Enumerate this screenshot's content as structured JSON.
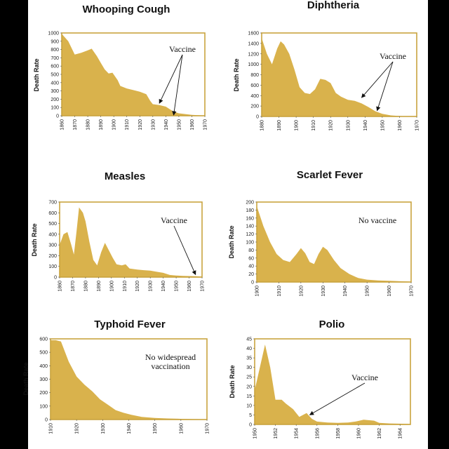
{
  "colors": {
    "fill": "#D9B24C",
    "frame": "#C9A43F",
    "text": "#111111"
  },
  "chart_data": [
    {
      "type": "area",
      "title": "Whooping Cough",
      "ylabel": "Death Rate",
      "xlabel": "",
      "xlim": [
        1860,
        1970
      ],
      "ylim": [
        0,
        1000
      ],
      "xticks": [
        1860,
        1870,
        1880,
        1890,
        1900,
        1910,
        1920,
        1930,
        1940,
        1950,
        1960,
        1970
      ],
      "yticks": [
        0,
        100,
        200,
        300,
        400,
        500,
        600,
        700,
        800,
        900,
        1000
      ],
      "points": [
        [
          1860,
          990
        ],
        [
          1865,
          900
        ],
        [
          1870,
          740
        ],
        [
          1875,
          760
        ],
        [
          1880,
          790
        ],
        [
          1883,
          810
        ],
        [
          1887,
          720
        ],
        [
          1890,
          640
        ],
        [
          1893,
          560
        ],
        [
          1896,
          510
        ],
        [
          1899,
          520
        ],
        [
          1903,
          430
        ],
        [
          1905,
          360
        ],
        [
          1910,
          330
        ],
        [
          1915,
          310
        ],
        [
          1920,
          290
        ],
        [
          1925,
          260
        ],
        [
          1928,
          180
        ],
        [
          1930,
          140
        ],
        [
          1935,
          130
        ],
        [
          1940,
          110
        ],
        [
          1943,
          80
        ],
        [
          1946,
          50
        ],
        [
          1950,
          30
        ],
        [
          1955,
          20
        ],
        [
          1960,
          10
        ],
        [
          1965,
          6
        ],
        [
          1970,
          4
        ]
      ],
      "annotation": {
        "text": "Vaccine",
        "arrow_targets": [
          [
            1935,
            150
          ],
          [
            1946,
            8
          ]
        ]
      }
    },
    {
      "type": "area",
      "title": "Diphtheria",
      "ylabel": "Death Rate",
      "xlabel": "",
      "xlim": [
        1880,
        1970
      ],
      "ylim": [
        0,
        1600
      ],
      "xticks": [
        1880,
        1890,
        1900,
        1910,
        1920,
        1930,
        1940,
        1950,
        1960,
        1970
      ],
      "yticks": [
        0,
        200,
        400,
        600,
        800,
        1000,
        1200,
        1400,
        1600
      ],
      "points": [
        [
          1880,
          1500
        ],
        [
          1883,
          1200
        ],
        [
          1886,
          1000
        ],
        [
          1889,
          1300
        ],
        [
          1891,
          1440
        ],
        [
          1893,
          1380
        ],
        [
          1896,
          1200
        ],
        [
          1899,
          900
        ],
        [
          1902,
          560
        ],
        [
          1905,
          450
        ],
        [
          1908,
          430
        ],
        [
          1911,
          520
        ],
        [
          1914,
          720
        ],
        [
          1917,
          700
        ],
        [
          1920,
          640
        ],
        [
          1923,
          450
        ],
        [
          1926,
          380
        ],
        [
          1930,
          320
        ],
        [
          1934,
          300
        ],
        [
          1938,
          250
        ],
        [
          1942,
          180
        ],
        [
          1946,
          100
        ],
        [
          1950,
          50
        ],
        [
          1955,
          20
        ],
        [
          1960,
          8
        ],
        [
          1965,
          4
        ],
        [
          1970,
          2
        ]
      ],
      "annotation": {
        "text": "Vaccine",
        "arrow_targets": [
          [
            1938,
            360
          ],
          [
            1947,
            110
          ]
        ]
      }
    },
    {
      "type": "area",
      "title": "Measles",
      "ylabel": "Death Rate",
      "xlabel": "",
      "xlim": [
        1860,
        1970
      ],
      "ylim": [
        0,
        700
      ],
      "xticks": [
        1860,
        1870,
        1880,
        1890,
        1900,
        1910,
        1920,
        1930,
        1940,
        1950,
        1960,
        1970
      ],
      "yticks": [
        0,
        100,
        200,
        300,
        400,
        500,
        600,
        700
      ],
      "points": [
        [
          1860,
          300
        ],
        [
          1863,
          400
        ],
        [
          1866,
          420
        ],
        [
          1869,
          300
        ],
        [
          1871,
          210
        ],
        [
          1873,
          420
        ],
        [
          1875,
          650
        ],
        [
          1878,
          600
        ],
        [
          1880,
          520
        ],
        [
          1883,
          330
        ],
        [
          1886,
          160
        ],
        [
          1889,
          110
        ],
        [
          1892,
          230
        ],
        [
          1895,
          320
        ],
        [
          1898,
          250
        ],
        [
          1901,
          180
        ],
        [
          1904,
          120
        ],
        [
          1908,
          110
        ],
        [
          1911,
          120
        ],
        [
          1914,
          80
        ],
        [
          1920,
          70
        ],
        [
          1925,
          65
        ],
        [
          1930,
          60
        ],
        [
          1935,
          50
        ],
        [
          1940,
          40
        ],
        [
          1945,
          20
        ],
        [
          1950,
          15
        ],
        [
          1955,
          12
        ],
        [
          1960,
          10
        ],
        [
          1965,
          8
        ],
        [
          1970,
          5
        ]
      ],
      "annotation": {
        "text": "Vaccine",
        "arrow_targets": [
          [
            1965,
            22
          ]
        ]
      }
    },
    {
      "type": "area",
      "title": "Scarlet Fever",
      "ylabel": "Death Rate",
      "xlabel": "",
      "xlim": [
        1900,
        1970
      ],
      "ylim": [
        0,
        200
      ],
      "xticks": [
        1900,
        1910,
        1920,
        1930,
        1940,
        1950,
        1960,
        1970
      ],
      "yticks": [
        0,
        20,
        40,
        60,
        80,
        100,
        120,
        140,
        160,
        180,
        200
      ],
      "points": [
        [
          1900,
          190
        ],
        [
          1903,
          140
        ],
        [
          1906,
          100
        ],
        [
          1909,
          70
        ],
        [
          1912,
          55
        ],
        [
          1915,
          50
        ],
        [
          1918,
          70
        ],
        [
          1920,
          85
        ],
        [
          1922,
          72
        ],
        [
          1924,
          50
        ],
        [
          1926,
          45
        ],
        [
          1928,
          70
        ],
        [
          1930,
          88
        ],
        [
          1932,
          80
        ],
        [
          1935,
          55
        ],
        [
          1938,
          35
        ],
        [
          1942,
          20
        ],
        [
          1946,
          10
        ],
        [
          1950,
          6
        ],
        [
          1955,
          4
        ],
        [
          1960,
          3
        ],
        [
          1965,
          2
        ],
        [
          1970,
          1
        ]
      ],
      "annotation": {
        "text": "No vaccine",
        "arrow_targets": []
      }
    },
    {
      "type": "area",
      "title": "Typhoid Fever",
      "ylabel": "Death Rate",
      "xlabel": "",
      "xlim": [
        1910,
        1970
      ],
      "ylim": [
        0,
        600
      ],
      "xticks": [
        1910,
        1920,
        1930,
        1940,
        1950,
        1960,
        1970
      ],
      "yticks": [
        0,
        100,
        200,
        300,
        400,
        500,
        600
      ],
      "points": [
        [
          1910,
          590
        ],
        [
          1912,
          590
        ],
        [
          1914,
          580
        ],
        [
          1917,
          430
        ],
        [
          1920,
          320
        ],
        [
          1923,
          260
        ],
        [
          1926,
          210
        ],
        [
          1929,
          150
        ],
        [
          1932,
          110
        ],
        [
          1935,
          70
        ],
        [
          1938,
          50
        ],
        [
          1941,
          35
        ],
        [
          1945,
          20
        ],
        [
          1950,
          12
        ],
        [
          1955,
          8
        ],
        [
          1960,
          5
        ],
        [
          1965,
          3
        ],
        [
          1970,
          2
        ]
      ],
      "annotation": {
        "text": "No widespread vaccination",
        "lines": [
          "No widespread",
          "vaccination"
        ],
        "arrow_targets": []
      }
    },
    {
      "type": "area",
      "title": "Polio",
      "ylabel": "Death Rate",
      "xlabel": "",
      "xlim": [
        1950,
        1965
      ],
      "ylim": [
        0,
        45
      ],
      "xticks": [
        1950,
        1952,
        1954,
        1956,
        1958,
        1960,
        1962,
        1964
      ],
      "yticks": [
        0,
        5,
        10,
        15,
        20,
        25,
        30,
        35,
        40,
        45
      ],
      "points": [
        [
          1950,
          18
        ],
        [
          1950.5,
          30
        ],
        [
          1951,
          42
        ],
        [
          1951.5,
          30
        ],
        [
          1952,
          13
        ],
        [
          1952.6,
          13
        ],
        [
          1953,
          11
        ],
        [
          1953.7,
          8
        ],
        [
          1954.3,
          4
        ],
        [
          1955,
          6
        ],
        [
          1955.5,
          3
        ],
        [
          1956,
          1.5
        ],
        [
          1957,
          1
        ],
        [
          1958,
          0.8
        ],
        [
          1959,
          1
        ],
        [
          1959.7,
          1.5
        ],
        [
          1960.5,
          2.5
        ],
        [
          1961.5,
          2
        ],
        [
          1962,
          0.8
        ],
        [
          1963,
          0.5
        ],
        [
          1965,
          0.3
        ]
      ],
      "annotation": {
        "text": "Vaccine",
        "arrow_targets": [
          [
            1955.3,
            5
          ]
        ]
      }
    }
  ]
}
